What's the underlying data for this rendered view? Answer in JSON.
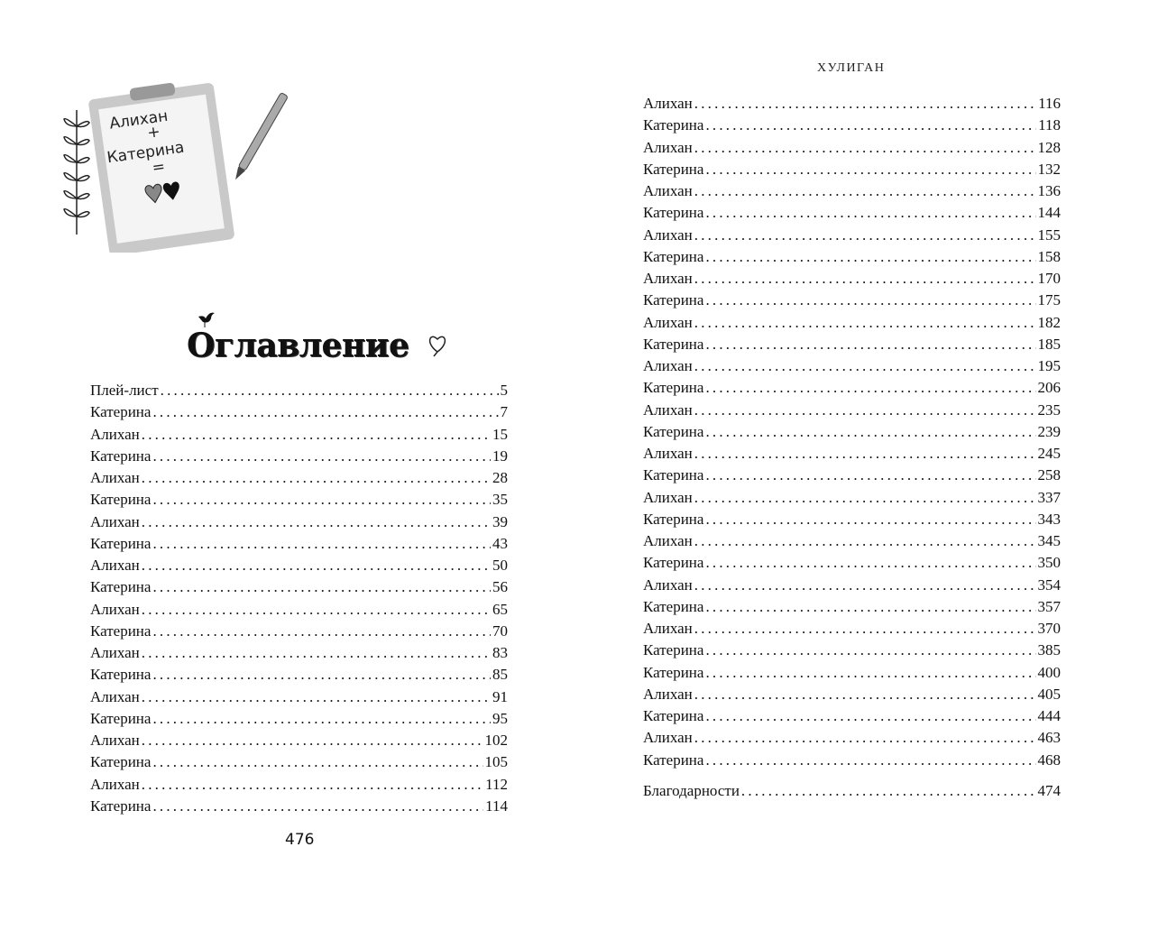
{
  "running_head": "ХУЛИГАН",
  "title": "Оглавление",
  "page_number": "476",
  "illustration": {
    "line1": "Алихан",
    "plus": "+",
    "line2": "Катерина",
    "equals": "="
  },
  "toc_left": [
    {
      "title": "Плей-лист",
      "page": "5"
    },
    {
      "title": "Катерина",
      "page": "7"
    },
    {
      "title": "Алихан",
      "page": "15"
    },
    {
      "title": "Катерина",
      "page": "19"
    },
    {
      "title": "Алихан",
      "page": "28"
    },
    {
      "title": "Катерина",
      "page": "35"
    },
    {
      "title": "Алихан",
      "page": "39"
    },
    {
      "title": "Катерина",
      "page": "43"
    },
    {
      "title": "Алихан",
      "page": "50"
    },
    {
      "title": "Катерина",
      "page": "56"
    },
    {
      "title": "Алихан",
      "page": "65"
    },
    {
      "title": "Катерина",
      "page": "70"
    },
    {
      "title": "Алихан",
      "page": "83"
    },
    {
      "title": "Катерина",
      "page": "85"
    },
    {
      "title": "Алихан",
      "page": "91"
    },
    {
      "title": "Катерина",
      "page": "95"
    },
    {
      "title": "Алихан",
      "page": "102"
    },
    {
      "title": "Катерина",
      "page": "105"
    },
    {
      "title": "Алихан",
      "page": "112"
    },
    {
      "title": "Катерина",
      "page": "114"
    }
  ],
  "toc_right": [
    {
      "title": "Алихан",
      "page": "116"
    },
    {
      "title": "Катерина",
      "page": "118"
    },
    {
      "title": "Алихан",
      "page": "128"
    },
    {
      "title": "Катерина",
      "page": "132"
    },
    {
      "title": "Алихан",
      "page": "136"
    },
    {
      "title": "Катерина",
      "page": "144"
    },
    {
      "title": "Алихан",
      "page": "155"
    },
    {
      "title": "Катерина",
      "page": "158"
    },
    {
      "title": "Алихан",
      "page": "170"
    },
    {
      "title": "Катерина",
      "page": "175"
    },
    {
      "title": "Алихан",
      "page": "182"
    },
    {
      "title": "Катерина",
      "page": "185"
    },
    {
      "title": "Алихан",
      "page": "195"
    },
    {
      "title": "Катерина",
      "page": "206"
    },
    {
      "title": "Алихан",
      "page": "235"
    },
    {
      "title": "Катерина",
      "page": "239"
    },
    {
      "title": "Алихан",
      "page": "245"
    },
    {
      "title": "Катерина",
      "page": "258"
    },
    {
      "title": "Алихан",
      "page": "337"
    },
    {
      "title": "Катерина",
      "page": "343"
    },
    {
      "title": "Алихан",
      "page": "345"
    },
    {
      "title": "Катерина",
      "page": "350"
    },
    {
      "title": "Алихан",
      "page": "354"
    },
    {
      "title": "Катерина",
      "page": "357"
    },
    {
      "title": "Алихан",
      "page": "370"
    },
    {
      "title": "Катерина",
      "page": "385"
    },
    {
      "title": "Катерина",
      "page": "400"
    },
    {
      "title": "Алихан",
      "page": "405"
    },
    {
      "title": "Катерина",
      "page": "444"
    },
    {
      "title": "Алихан",
      "page": "463"
    },
    {
      "title": "Катерина",
      "page": "468"
    }
  ],
  "toc_final": {
    "title": "Благодарности",
    "page": "474"
  }
}
